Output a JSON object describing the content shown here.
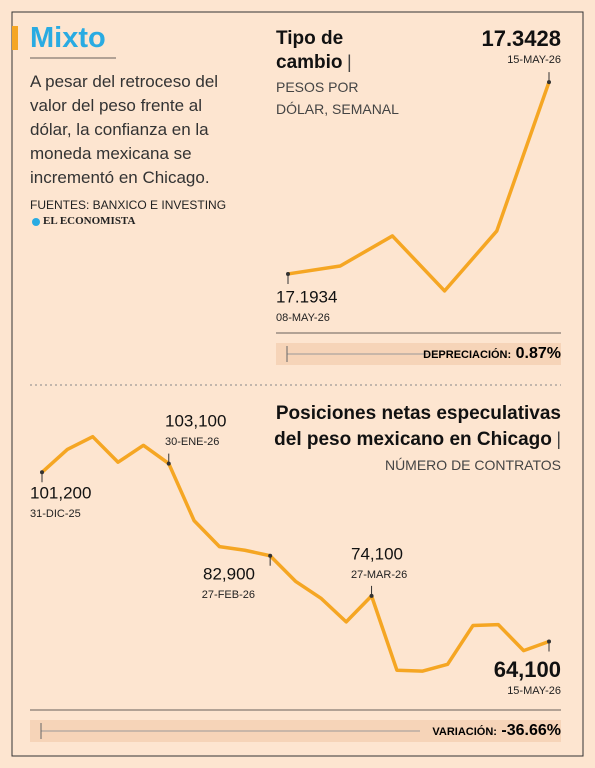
{
  "header": {
    "title": "Mixto",
    "description": "A pesar del retroceso del valor del peso frente al dólar, la confianza en la moneda mexicana se incrementó en Chicago.",
    "sources": "FUENTES: BANXICO E INVESTING",
    "logo": "EL ECONOMISTA"
  },
  "chart_data": [
    {
      "type": "line",
      "title": "Tipo de cambio",
      "subtitle": "PESOS POR DÓLAR, SEMANAL",
      "color": "#f5a623",
      "categories": [
        "08-MAY-26",
        null,
        null,
        null,
        null,
        "15-MAY-26"
      ],
      "values": [
        17.1934,
        17.1996,
        17.223,
        17.1802,
        17.2269,
        17.3428
      ],
      "value_labels": [
        "17.1934",
        null,
        null,
        null,
        null,
        "17.3428"
      ],
      "ylim": [
        17.17,
        17.36
      ],
      "summary_label": "DEPRECIACIÓN:",
      "summary_value": "0.87%"
    },
    {
      "type": "line",
      "title": "Posiciones netas especulativas del peso mexicano en Chicago",
      "subtitle": "NÚMERO DE CONTRATOS",
      "color": "#f5a623",
      "categories": [
        "31-DIC-25",
        null,
        null,
        null,
        null,
        "30-ENE-26",
        null,
        null,
        null,
        "27-FEB-26",
        null,
        null,
        null,
        "27-MAR-26",
        null,
        null,
        null,
        null,
        null,
        null,
        "15-MAY-26"
      ],
      "values": [
        101200,
        106200,
        109000,
        103400,
        107100,
        103100,
        90600,
        84900,
        84100,
        82900,
        77300,
        73600,
        68400,
        74100,
        57800,
        57600,
        59100,
        67600,
        67800,
        62100,
        64100
      ],
      "value_labels": [
        "101,200",
        null,
        null,
        null,
        null,
        "103,100",
        null,
        null,
        null,
        "82,900",
        null,
        null,
        null,
        "74,100",
        null,
        null,
        null,
        null,
        null,
        null,
        "64,100"
      ],
      "ylim": [
        55000,
        112000
      ],
      "summary_label": "VARIACIÓN:",
      "summary_value": "-36.66%"
    }
  ]
}
